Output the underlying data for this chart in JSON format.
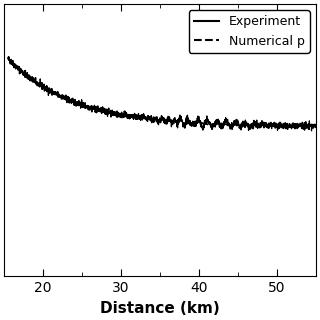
{
  "title": "",
  "xlabel": "Distance (km)",
  "ylabel": "",
  "xlim": [
    15,
    55
  ],
  "ylim": [
    -1.5,
    0.5
  ],
  "xticks": [
    20,
    30,
    40,
    50
  ],
  "legend_labels": [
    "Experiment",
    "Numerical p"
  ],
  "legend_loc": "upper right",
  "bg_color": "#ffffff",
  "line_color": "#000000",
  "xlabel_fontsize": 11,
  "tick_fontsize": 10,
  "legend_fontsize": 9,
  "seed": 42,
  "x_start": 15.5,
  "x_end": 55.0,
  "n_points": 2000
}
